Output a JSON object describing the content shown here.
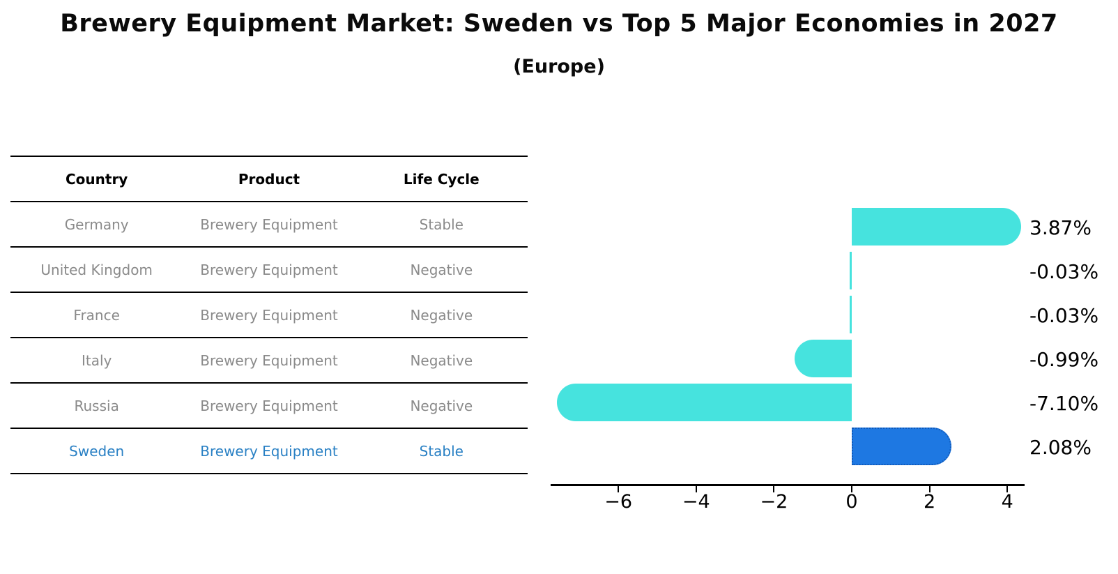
{
  "title": "Brewery Equipment Market: Sweden vs Top 5 Major Economies in 2027",
  "subtitle": "(Europe)",
  "table": {
    "headers": [
      "Country",
      "Product",
      "Life Cycle"
    ],
    "rows": [
      {
        "country": "Germany",
        "product": "Brewery Equipment",
        "life_cycle": "Stable",
        "highlighted": false
      },
      {
        "country": "United Kingdom",
        "product": "Brewery Equipment",
        "life_cycle": "Negative",
        "highlighted": false
      },
      {
        "country": "France",
        "product": "Brewery Equipment",
        "life_cycle": "Negative",
        "highlighted": false
      },
      {
        "country": "Italy",
        "product": "Brewery Equipment",
        "life_cycle": "Negative",
        "highlighted": false
      },
      {
        "country": "Russia",
        "product": "Brewery Equipment",
        "life_cycle": "Negative",
        "highlighted": false
      },
      {
        "country": "Sweden",
        "product": "Brewery Equipment",
        "life_cycle": "Stable",
        "highlighted": true
      }
    ]
  },
  "chart_data": {
    "type": "bar",
    "orientation": "horizontal",
    "title": "Brewery Equipment Market: Sweden vs Top 5 Major Economies in 2027 (Europe)",
    "categories": [
      "Germany",
      "United Kingdom",
      "France",
      "Italy",
      "Russia",
      "Sweden"
    ],
    "values": [
      3.87,
      -0.03,
      -0.03,
      -0.99,
      -7.1,
      2.08
    ],
    "value_labels": [
      "3.87%",
      "-0.03%",
      "-0.03%",
      "-0.99%",
      "-7.10%",
      "2.08%"
    ],
    "xlim": [
      -7.7,
      4.5
    ],
    "x_ticks": [
      -6,
      -4,
      -2,
      0,
      2,
      4
    ],
    "x_tick_labels": [
      "−6",
      "−4",
      "−2",
      "0",
      "2",
      "4"
    ],
    "grid": false,
    "legend": "none",
    "highlight_category": "Sweden",
    "colors": {
      "bar": "#46e3de",
      "highlight_bar": "#1e78e2",
      "highlight_border": "#1159b8",
      "value_text": "#000000",
      "table_text": "#8a8a8a",
      "highlight_text": "#2980c4"
    }
  }
}
